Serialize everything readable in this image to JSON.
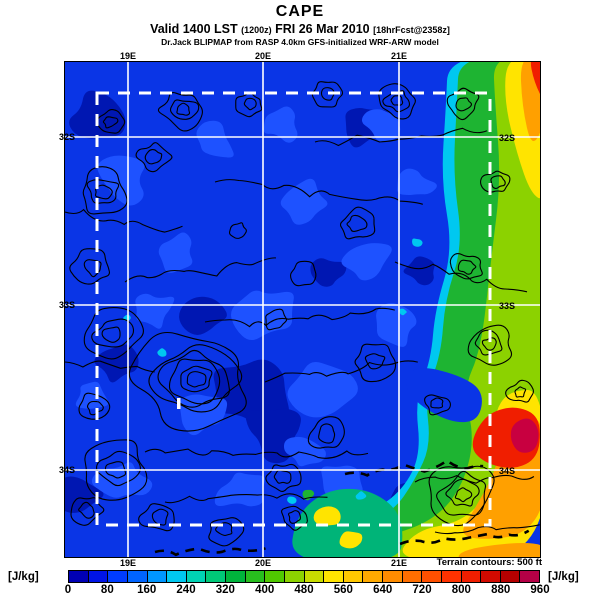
{
  "header": {
    "title": "CAPE",
    "valid_prefix": "Valid 1400 LST",
    "valid_zulu": "(1200z)",
    "valid_date": "FRI 26 Mar 2010",
    "fcst_tag": "[18hrFcst@2358z]",
    "model_line": "Dr.Jack BLIPMAP from RASP 4.0km GFS-initialized WRF-ARW model"
  },
  "map": {
    "lon_ticks": [
      "19E",
      "20E",
      "21E"
    ],
    "lat_ticks": [
      "32S",
      "33S",
      "34S"
    ],
    "terrain_note": "Terrain contours: 500 ft",
    "palette": {
      "base": "#0a35e6",
      "navy": "#0017b2",
      "bright": "#1e52ff",
      "cyan": "#00c8f0",
      "teal": "#00b478",
      "green": "#1eb432",
      "ygreen": "#8cd200",
      "yellow": "#ffe400",
      "orange": "#ffa000",
      "red": "#f01e00",
      "crimson": "#c80040",
      "contour": "#000000",
      "graticule": "#ffffff"
    }
  },
  "chart_data": {
    "type": "heatmap",
    "title": "CAPE",
    "subtitle": "Valid 1400 LST (1200z) FRI 26 Mar 2010 [18hrFcst@2358z]",
    "source_line": "Dr.Jack BLIPMAP from RASP 4.0km GFS-initialized WRF-ARW model",
    "units": "J/kg",
    "x_axis_ticks": [
      "19E",
      "20E",
      "21E"
    ],
    "y_axis_ticks": [
      "32S",
      "33S",
      "34S"
    ],
    "colorbar_range": [
      0,
      960
    ],
    "colorbar_step": 80,
    "overlay": "Terrain contours: 500 ft",
    "description": "CAPE mostly 0-80 J/kg (blue) over interior; values rise eastward through 200-600 J/kg (green-yellow) along the eastern edge, peaking 800-960 J/kg (red/crimson) near 34S at the east boundary and at the northeast corner; elevated 400-700 J/kg band across the southeast."
  },
  "colorbar": {
    "unit": "[J/kg]",
    "ticks": [
      "0",
      "80",
      "160",
      "240",
      "320",
      "400",
      "480",
      "560",
      "640",
      "720",
      "800",
      "880",
      "960"
    ],
    "colors": [
      "#0000b4",
      "#0014e6",
      "#003cff",
      "#0064ff",
      "#0096ff",
      "#00c8f0",
      "#00d2b4",
      "#00c878",
      "#00b43c",
      "#28be1e",
      "#50c800",
      "#8cd200",
      "#c8dc00",
      "#ffe400",
      "#ffc800",
      "#ffaa00",
      "#ff8c00",
      "#ff6e00",
      "#ff5000",
      "#ff3200",
      "#f01e00",
      "#d20a00",
      "#b40000",
      "#b40046"
    ]
  }
}
